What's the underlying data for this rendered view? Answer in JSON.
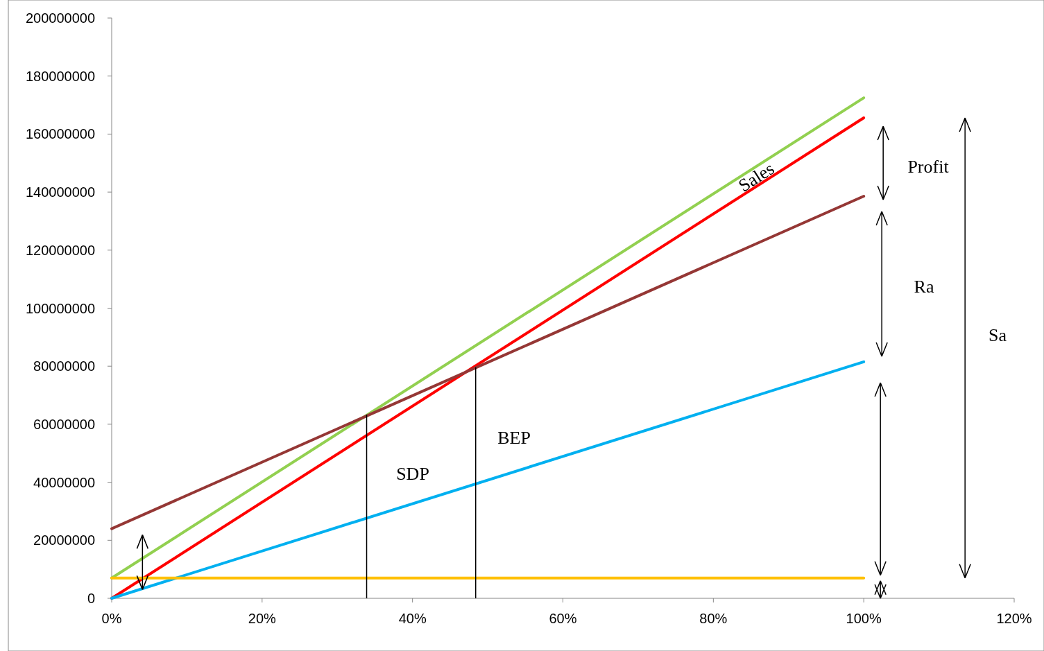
{
  "chart_data": {
    "type": "line",
    "xlim": [
      0,
      120
    ],
    "xticks": [
      {
        "value": 0,
        "label": "0%"
      },
      {
        "value": 20,
        "label": "20%"
      },
      {
        "value": 40,
        "label": "40%"
      },
      {
        "value": 60,
        "label": "60%"
      },
      {
        "value": 80,
        "label": "80%"
      },
      {
        "value": 100,
        "label": "100%"
      },
      {
        "value": 120,
        "label": "120%"
      }
    ],
    "ylim": [
      0,
      200000000
    ],
    "yticks": [
      0,
      20000000,
      40000000,
      60000000,
      80000000,
      100000000,
      120000000,
      140000000,
      160000000,
      180000000,
      200000000
    ],
    "grid": false,
    "marker": "none",
    "line_style": "solid",
    "series": [
      {
        "color": "#92d050",
        "x": [
          0,
          100
        ],
        "values": [
          7000000,
          172500000
        ]
      },
      {
        "color": "#ff0000",
        "x": [
          0,
          100
        ],
        "values": [
          0,
          165600000
        ]
      },
      {
        "color": "#953735",
        "x": [
          0,
          100
        ],
        "values": [
          24000000,
          138600000
        ]
      },
      {
        "color": "#00b0f0",
        "x": [
          0,
          100
        ],
        "values": [
          0,
          81500000
        ]
      },
      {
        "color": "#ffc000",
        "x": [
          0,
          100
        ],
        "values": [
          7000000,
          7000000
        ]
      },
      {
        "color": "#000000",
        "x": [
          33.9,
          33.9
        ],
        "values": [
          0,
          63300000
        ]
      },
      {
        "color": "#000000",
        "x": [
          48.4,
          48.4
        ],
        "values": [
          0,
          79600000
        ]
      }
    ],
    "annotations": [
      "Sales",
      "Profit",
      "Ra",
      "Sa",
      "SDP",
      "BEP"
    ]
  }
}
